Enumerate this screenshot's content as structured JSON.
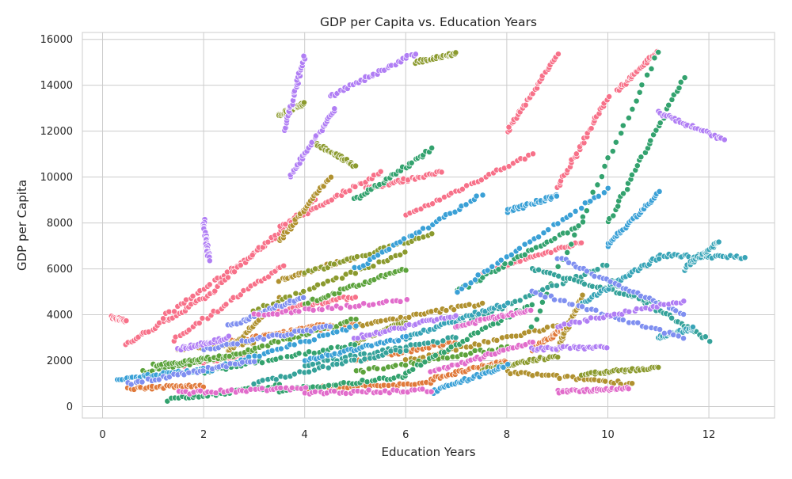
{
  "chart_data": {
    "type": "scatter",
    "title": "GDP per Capita vs. Education Years",
    "xlabel": "Education Years",
    "ylabel": "GDP per Capita",
    "xlim": [
      -0.4,
      13.3
    ],
    "ylim": [
      -500,
      16300
    ],
    "xticks": [
      0,
      2,
      4,
      6,
      8,
      10,
      12
    ],
    "yticks": [
      0,
      2000,
      4000,
      6000,
      8000,
      10000,
      12000,
      14000,
      16000
    ],
    "grid": true,
    "legend": "none",
    "marker": "circle",
    "palette": [
      "#f77189",
      "#e0793a",
      "#b0912f",
      "#8b9a2e",
      "#5ca33c",
      "#33a26e",
      "#35a29a",
      "#38a4b7",
      "#3aa0d6",
      "#7f8ff0",
      "#b07ef4",
      "#e16ccb"
    ],
    "series": [
      {
        "color": "#f77189",
        "segments": [
          {
            "x": [
              0.2,
              0.45
            ],
            "y": [
              3880,
              3720
            ]
          },
          {
            "x": [
              0.45,
              2.2
            ],
            "y": [
              2700,
              4950
            ]
          },
          {
            "x": [
              1.2,
              3.4
            ],
            "y": [
              3900,
              7300
            ]
          },
          {
            "x": [
              2.2,
              4.2
            ],
            "y": [
              5100,
              9000
            ]
          },
          {
            "x": [
              3.5,
              5.5
            ],
            "y": [
              7800,
              10200
            ]
          },
          {
            "x": [
              5.2,
              6.7
            ],
            "y": [
              9500,
              10200
            ]
          },
          {
            "x": [
              1.4,
              3.6
            ],
            "y": [
              2900,
              6200
            ]
          },
          {
            "x": [
              6.0,
              8.5
            ],
            "y": [
              8300,
              11000
            ]
          },
          {
            "x": [
              8.0,
              9.0
            ],
            "y": [
              12000,
              15300
            ]
          },
          {
            "x": [
              9.0,
              10.0
            ],
            "y": [
              9500,
              13500
            ]
          },
          {
            "x": [
              10.2,
              11.0
            ],
            "y": [
              13800,
              15500
            ]
          },
          {
            "x": [
              1.5,
              3.0
            ],
            "y": [
              1800,
              2300
            ]
          },
          {
            "x": [
              7.5,
              9.5
            ],
            "y": [
              5800,
              7200
            ]
          },
          {
            "x": [
              3.0,
              5.0
            ],
            "y": [
              4000,
              4800
            ]
          }
        ]
      },
      {
        "color": "#e0793a",
        "segments": [
          {
            "x": [
              0.5,
              2.0
            ],
            "y": [
              800,
              900
            ]
          },
          {
            "x": [
              2.5,
              4.5
            ],
            "y": [
              2800,
              3600
            ]
          },
          {
            "x": [
              4.0,
              6.5
            ],
            "y": [
              800,
              1000
            ]
          },
          {
            "x": [
              6.5,
              8.0
            ],
            "y": [
              1200,
              2000
            ]
          },
          {
            "x": [
              5.0,
              7.0
            ],
            "y": [
              2000,
              2800
            ]
          },
          {
            "x": [
              8.5,
              9.2
            ],
            "y": [
              2500,
              3500
            ]
          },
          {
            "x": [
              3.0,
              5.0
            ],
            "y": [
              3000,
              3600
            ]
          }
        ]
      },
      {
        "color": "#b0912f",
        "segments": [
          {
            "x": [
              2.5,
              3.5
            ],
            "y": [
              2400,
              4700
            ]
          },
          {
            "x": [
              3.5,
              5.0
            ],
            "y": [
              5500,
              6500
            ]
          },
          {
            "x": [
              6.0,
              9.0
            ],
            "y": [
              2000,
              3500
            ]
          },
          {
            "x": [
              8.0,
              10.5
            ],
            "y": [
              1500,
              1000
            ]
          },
          {
            "x": [
              9.0,
              9.5
            ],
            "y": [
              2500,
              4800
            ]
          },
          {
            "x": [
              3.5,
              4.5
            ],
            "y": [
              7200,
              10000
            ]
          },
          {
            "x": [
              5.0,
              7.5
            ],
            "y": [
              3500,
              4500
            ]
          },
          {
            "x": [
              1.5,
              3.0
            ],
            "y": [
              2500,
              2800
            ]
          }
        ]
      },
      {
        "color": "#8b9a2e",
        "segments": [
          {
            "x": [
              4.2,
              5.0
            ],
            "y": [
              11500,
              10500
            ]
          },
          {
            "x": [
              3.0,
              6.0
            ],
            "y": [
              4200,
              6700
            ]
          },
          {
            "x": [
              6.2,
              7.0
            ],
            "y": [
              15000,
              15400
            ]
          },
          {
            "x": [
              7.5,
              9.0
            ],
            "y": [
              1600,
              2200
            ]
          },
          {
            "x": [
              9.5,
              11.0
            ],
            "y": [
              1400,
              1700
            ]
          },
          {
            "x": [
              4.0,
              6.5
            ],
            "y": [
              5800,
              7500
            ]
          },
          {
            "x": [
              5.0,
              6.0
            ],
            "y": [
              2800,
              3700
            ]
          },
          {
            "x": [
              3.5,
              4.0
            ],
            "y": [
              12700,
              13200
            ]
          }
        ]
      },
      {
        "color": "#5ca33c",
        "segments": [
          {
            "x": [
              0.8,
              3.0
            ],
            "y": [
              1500,
              2400
            ]
          },
          {
            "x": [
              2.5,
              5.0
            ],
            "y": [
              2200,
              3800
            ]
          },
          {
            "x": [
              5.0,
              8.0
            ],
            "y": [
              1500,
              2600
            ]
          },
          {
            "x": [
              1.0,
              2.5
            ],
            "y": [
              1800,
              2200
            ]
          },
          {
            "x": [
              4.0,
              6.0
            ],
            "y": [
              4500,
              6000
            ]
          }
        ]
      },
      {
        "color": "#33a26e",
        "segments": [
          {
            "x": [
              1.3,
              3.5
            ],
            "y": [
              300,
              900
            ]
          },
          {
            "x": [
              3.5,
              6.0
            ],
            "y": [
              700,
              1300
            ]
          },
          {
            "x": [
              6.0,
              8.5
            ],
            "y": [
              1500,
              4500
            ]
          },
          {
            "x": [
              8.5,
              11.0
            ],
            "y": [
              3500,
              15500
            ]
          },
          {
            "x": [
              10.0,
              11.5
            ],
            "y": [
              8000,
              14300
            ]
          },
          {
            "x": [
              5.0,
              6.5
            ],
            "y": [
              9000,
              11200
            ]
          },
          {
            "x": [
              7.0,
              9.5
            ],
            "y": [
              5000,
              8000
            ]
          },
          {
            "x": [
              2.0,
              5.0
            ],
            "y": [
              1500,
              2700
            ]
          }
        ]
      },
      {
        "color": "#35a29a",
        "segments": [
          {
            "x": [
              4.0,
              7.0
            ],
            "y": [
              1800,
              3000
            ]
          },
          {
            "x": [
              7.0,
              10.0
            ],
            "y": [
              3500,
              6200
            ]
          },
          {
            "x": [
              10.0,
              12.0
            ],
            "y": [
              5500,
              2900
            ]
          },
          {
            "x": [
              3.0,
              6.0
            ],
            "y": [
              1000,
              2500
            ]
          },
          {
            "x": [
              8.5,
              11.0
            ],
            "y": [
              6000,
              4500
            ]
          }
        ]
      },
      {
        "color": "#38a4b7",
        "segments": [
          {
            "x": [
              11.0,
              12.7
            ],
            "y": [
              6600,
              6500
            ]
          },
          {
            "x": [
              11.5,
              12.2
            ],
            "y": [
              6000,
              7200
            ]
          },
          {
            "x": [
              11.0,
              11.7
            ],
            "y": [
              3000,
              3400
            ]
          },
          {
            "x": [
              9.5,
              11.0
            ],
            "y": [
              4500,
              6500
            ]
          },
          {
            "x": [
              6.0,
              8.0
            ],
            "y": [
              3000,
              4500
            ]
          }
        ]
      },
      {
        "color": "#3aa0d6",
        "segments": [
          {
            "x": [
              0.3,
              2.0
            ],
            "y": [
              1200,
              1600
            ]
          },
          {
            "x": [
              2.0,
              5.0
            ],
            "y": [
              1500,
              3500
            ]
          },
          {
            "x": [
              5.0,
              7.5
            ],
            "y": [
              6000,
              9200
            ]
          },
          {
            "x": [
              7.0,
              10.0
            ],
            "y": [
              5000,
              9500
            ]
          },
          {
            "x": [
              10.0,
              11.0
            ],
            "y": [
              7000,
              9300
            ]
          },
          {
            "x": [
              6.5,
              8.0
            ],
            "y": [
              600,
              1800
            ]
          },
          {
            "x": [
              8.0,
              9.0
            ],
            "y": [
              8500,
              9200
            ]
          },
          {
            "x": [
              4.0,
              6.0
            ],
            "y": [
              2000,
              3000
            ]
          }
        ]
      },
      {
        "color": "#7f8ff0",
        "segments": [
          {
            "x": [
              0.5,
              3.0
            ],
            "y": [
              1000,
              2000
            ]
          },
          {
            "x": [
              2.0,
              4.5
            ],
            "y": [
              2500,
              3500
            ]
          },
          {
            "x": [
              8.5,
              11.5
            ],
            "y": [
              5000,
              3000
            ]
          },
          {
            "x": [
              9.0,
              11.5
            ],
            "y": [
              6500,
              4000
            ]
          },
          {
            "x": [
              2.5,
              4.0
            ],
            "y": [
              3500,
              4800
            ]
          }
        ]
      },
      {
        "color": "#b07ef4",
        "segments": [
          {
            "x": [
              3.6,
              4.0
            ],
            "y": [
              12000,
              15300
            ]
          },
          {
            "x": [
              3.7,
              4.6
            ],
            "y": [
              10000,
              13000
            ]
          },
          {
            "x": [
              4.5,
              6.2
            ],
            "y": [
              13500,
              15400
            ]
          },
          {
            "x": [
              2.0,
              2.1
            ],
            "y": [
              8100,
              6400
            ]
          },
          {
            "x": [
              11.0,
              12.3
            ],
            "y": [
              12800,
              11600
            ]
          },
          {
            "x": [
              8.5,
              10.0
            ],
            "y": [
              2500,
              2600
            ]
          },
          {
            "x": [
              9.0,
              11.5
            ],
            "y": [
              3500,
              4600
            ]
          },
          {
            "x": [
              5.0,
              7.0
            ],
            "y": [
              3000,
              4000
            ]
          },
          {
            "x": [
              1.5,
              2.5
            ],
            "y": [
              2500,
              3000
            ]
          }
        ]
      },
      {
        "color": "#e16ccb",
        "segments": [
          {
            "x": [
              1.5,
              4.0
            ],
            "y": [
              600,
              800
            ]
          },
          {
            "x": [
              4.0,
              6.5
            ],
            "y": [
              600,
              700
            ]
          },
          {
            "x": [
              6.5,
              8.5
            ],
            "y": [
              1500,
              2800
            ]
          },
          {
            "x": [
              9.0,
              10.4
            ],
            "y": [
              650,
              800
            ]
          },
          {
            "x": [
              3.0,
              6.0
            ],
            "y": [
              4000,
              4600
            ]
          },
          {
            "x": [
              7.0,
              8.5
            ],
            "y": [
              3500,
              4200
            ]
          }
        ]
      }
    ]
  }
}
